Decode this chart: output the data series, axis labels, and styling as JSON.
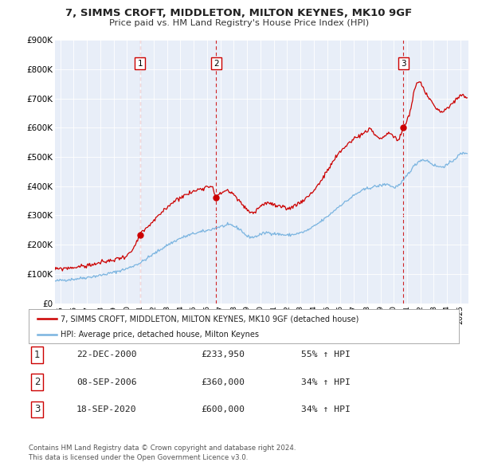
{
  "title": "7, SIMMS CROFT, MIDDLETON, MILTON KEYNES, MK10 9GF",
  "subtitle": "Price paid vs. HM Land Registry's House Price Index (HPI)",
  "hpi_color": "#7ab4e0",
  "price_color": "#cc0000",
  "sale_marker_color": "#cc0000",
  "vline_color": "#cc0000",
  "background_color": "#ffffff",
  "plot_bg_color": "#e8eef8",
  "grid_color": "#ffffff",
  "ylim": [
    0,
    900000
  ],
  "yticks": [
    0,
    100000,
    200000,
    300000,
    400000,
    500000,
    600000,
    700000,
    800000,
    900000
  ],
  "ytick_labels": [
    "£0",
    "£100K",
    "£200K",
    "£300K",
    "£400K",
    "£500K",
    "£600K",
    "£700K",
    "£800K",
    "£900K"
  ],
  "xlim_start": 1994.6,
  "xlim_end": 2025.6,
  "xticks": [
    1995,
    1996,
    1997,
    1998,
    1999,
    2000,
    2001,
    2002,
    2003,
    2004,
    2005,
    2006,
    2007,
    2008,
    2009,
    2010,
    2011,
    2012,
    2013,
    2014,
    2015,
    2016,
    2017,
    2018,
    2019,
    2020,
    2021,
    2022,
    2023,
    2024,
    2025
  ],
  "sale1_x": 2000.97,
  "sale1_y": 233950,
  "sale2_x": 2006.69,
  "sale2_y": 360000,
  "sale3_x": 2020.72,
  "sale3_y": 600000,
  "legend_label_price": "7, SIMMS CROFT, MIDDLETON, MILTON KEYNES, MK10 9GF (detached house)",
  "legend_label_hpi": "HPI: Average price, detached house, Milton Keynes",
  "table_rows": [
    {
      "num": "1",
      "date": "22-DEC-2000",
      "price": "£233,950",
      "change": "55% ↑ HPI"
    },
    {
      "num": "2",
      "date": "08-SEP-2006",
      "price": "£360,000",
      "change": "34% ↑ HPI"
    },
    {
      "num": "3",
      "date": "18-SEP-2020",
      "price": "£600,000",
      "change": "34% ↑ HPI"
    }
  ],
  "footer": "Contains HM Land Registry data © Crown copyright and database right 2024.\nThis data is licensed under the Open Government Licence v3.0.",
  "hpi_anchors": [
    [
      1994.6,
      75000
    ],
    [
      1995.0,
      78000
    ],
    [
      1996.0,
      82000
    ],
    [
      1997.0,
      88000
    ],
    [
      1998.0,
      95000
    ],
    [
      1999.0,
      105000
    ],
    [
      2000.0,
      118000
    ],
    [
      2001.0,
      138000
    ],
    [
      2002.0,
      168000
    ],
    [
      2003.0,
      198000
    ],
    [
      2004.0,
      222000
    ],
    [
      2005.0,
      238000
    ],
    [
      2006.0,
      248000
    ],
    [
      2007.0,
      262000
    ],
    [
      2007.8,
      268000
    ],
    [
      2008.5,
      252000
    ],
    [
      2009.0,
      228000
    ],
    [
      2009.5,
      225000
    ],
    [
      2010.0,
      235000
    ],
    [
      2010.5,
      242000
    ],
    [
      2011.0,
      238000
    ],
    [
      2011.5,
      235000
    ],
    [
      2012.0,
      232000
    ],
    [
      2012.5,
      235000
    ],
    [
      2013.0,
      240000
    ],
    [
      2013.5,
      248000
    ],
    [
      2014.0,
      262000
    ],
    [
      2014.5,
      278000
    ],
    [
      2015.0,
      295000
    ],
    [
      2015.5,
      315000
    ],
    [
      2016.0,
      335000
    ],
    [
      2016.5,
      350000
    ],
    [
      2017.0,
      368000
    ],
    [
      2017.5,
      382000
    ],
    [
      2018.0,
      392000
    ],
    [
      2018.5,
      398000
    ],
    [
      2019.0,
      402000
    ],
    [
      2019.5,
      408000
    ],
    [
      2020.0,
      395000
    ],
    [
      2020.5,
      405000
    ],
    [
      2021.0,
      438000
    ],
    [
      2021.5,
      468000
    ],
    [
      2022.0,
      490000
    ],
    [
      2022.5,
      488000
    ],
    [
      2023.0,
      472000
    ],
    [
      2023.5,
      465000
    ],
    [
      2024.0,
      472000
    ],
    [
      2024.5,
      490000
    ],
    [
      2025.0,
      510000
    ],
    [
      2025.5,
      515000
    ]
  ],
  "price_anchors": [
    [
      1994.6,
      115000
    ],
    [
      1995.0,
      118000
    ],
    [
      1996.0,
      122000
    ],
    [
      1997.0,
      128000
    ],
    [
      1998.0,
      138000
    ],
    [
      1999.0,
      148000
    ],
    [
      1999.5,
      155000
    ],
    [
      2000.0,
      162000
    ],
    [
      2000.5,
      185000
    ],
    [
      2000.97,
      233950
    ],
    [
      2001.5,
      258000
    ],
    [
      2002.0,
      280000
    ],
    [
      2002.5,
      305000
    ],
    [
      2003.0,
      328000
    ],
    [
      2003.5,
      348000
    ],
    [
      2004.0,
      362000
    ],
    [
      2004.5,
      372000
    ],
    [
      2005.0,
      382000
    ],
    [
      2005.5,
      392000
    ],
    [
      2006.0,
      398000
    ],
    [
      2006.4,
      402000
    ],
    [
      2006.69,
      360000
    ],
    [
      2007.0,
      375000
    ],
    [
      2007.5,
      388000
    ],
    [
      2008.0,
      370000
    ],
    [
      2008.5,
      345000
    ],
    [
      2009.0,
      318000
    ],
    [
      2009.5,
      308000
    ],
    [
      2010.0,
      332000
    ],
    [
      2010.5,
      345000
    ],
    [
      2011.0,
      335000
    ],
    [
      2011.5,
      328000
    ],
    [
      2012.0,
      322000
    ],
    [
      2012.5,
      332000
    ],
    [
      2013.0,
      345000
    ],
    [
      2013.5,
      362000
    ],
    [
      2014.0,
      385000
    ],
    [
      2014.5,
      415000
    ],
    [
      2015.0,
      450000
    ],
    [
      2015.5,
      488000
    ],
    [
      2016.0,
      518000
    ],
    [
      2016.5,
      542000
    ],
    [
      2017.0,
      562000
    ],
    [
      2017.5,
      575000
    ],
    [
      2018.0,
      588000
    ],
    [
      2018.3,
      595000
    ],
    [
      2018.5,
      580000
    ],
    [
      2018.8,
      568000
    ],
    [
      2019.0,
      558000
    ],
    [
      2019.3,
      572000
    ],
    [
      2019.6,
      585000
    ],
    [
      2020.0,
      568000
    ],
    [
      2020.4,
      558000
    ],
    [
      2020.72,
      600000
    ],
    [
      2021.0,
      625000
    ],
    [
      2021.3,
      668000
    ],
    [
      2021.5,
      720000
    ],
    [
      2021.7,
      748000
    ],
    [
      2021.9,
      758000
    ],
    [
      2022.0,
      752000
    ],
    [
      2022.2,
      738000
    ],
    [
      2022.4,
      718000
    ],
    [
      2022.6,
      705000
    ],
    [
      2022.8,
      695000
    ],
    [
      2023.0,
      678000
    ],
    [
      2023.2,
      665000
    ],
    [
      2023.4,
      658000
    ],
    [
      2023.6,
      652000
    ],
    [
      2023.8,
      658000
    ],
    [
      2024.0,
      665000
    ],
    [
      2024.2,
      672000
    ],
    [
      2024.5,
      688000
    ],
    [
      2024.8,
      702000
    ],
    [
      2025.0,
      715000
    ],
    [
      2025.3,
      705000
    ],
    [
      2025.5,
      695000
    ]
  ]
}
